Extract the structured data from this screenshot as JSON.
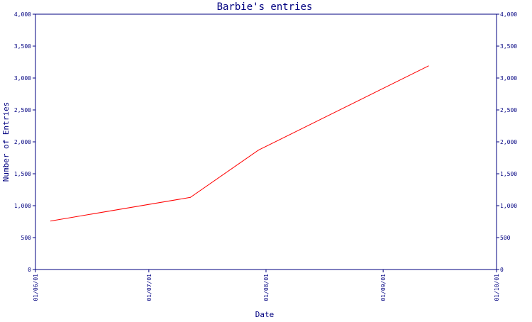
{
  "chart_data": {
    "type": "line",
    "title": "Barbie's entries",
    "xlabel": "Date",
    "ylabel": "Number of Entries",
    "x_ticks": [
      "01/06/01",
      "01/07/01",
      "01/08/01",
      "01/09/01",
      "01/10/01"
    ],
    "y_ticks_left": [
      "0",
      "500",
      "1,000",
      "1,500",
      "2,000",
      "2,500",
      "3,000",
      "3,500",
      "4,000"
    ],
    "y_ticks_right": [
      "0",
      "500",
      "1,000",
      "1,500",
      "2,000",
      "2,500",
      "3,000",
      "3,500",
      "4,000"
    ],
    "xlim": [
      "2001-06-01",
      "2001-10-01"
    ],
    "ylim": [
      0,
      4000
    ],
    "grid": false,
    "series": [
      {
        "color": "#ff0000",
        "points": [
          {
            "x": "2001-06-05",
            "y": 760
          },
          {
            "x": "2001-07-12",
            "y": 1130
          },
          {
            "x": "2001-07-30",
            "y": 1870
          },
          {
            "x": "2001-09-13",
            "y": 3190
          }
        ]
      }
    ],
    "colors": {
      "axis": "#000080",
      "text": "#000080",
      "line": "#ff0000"
    }
  }
}
